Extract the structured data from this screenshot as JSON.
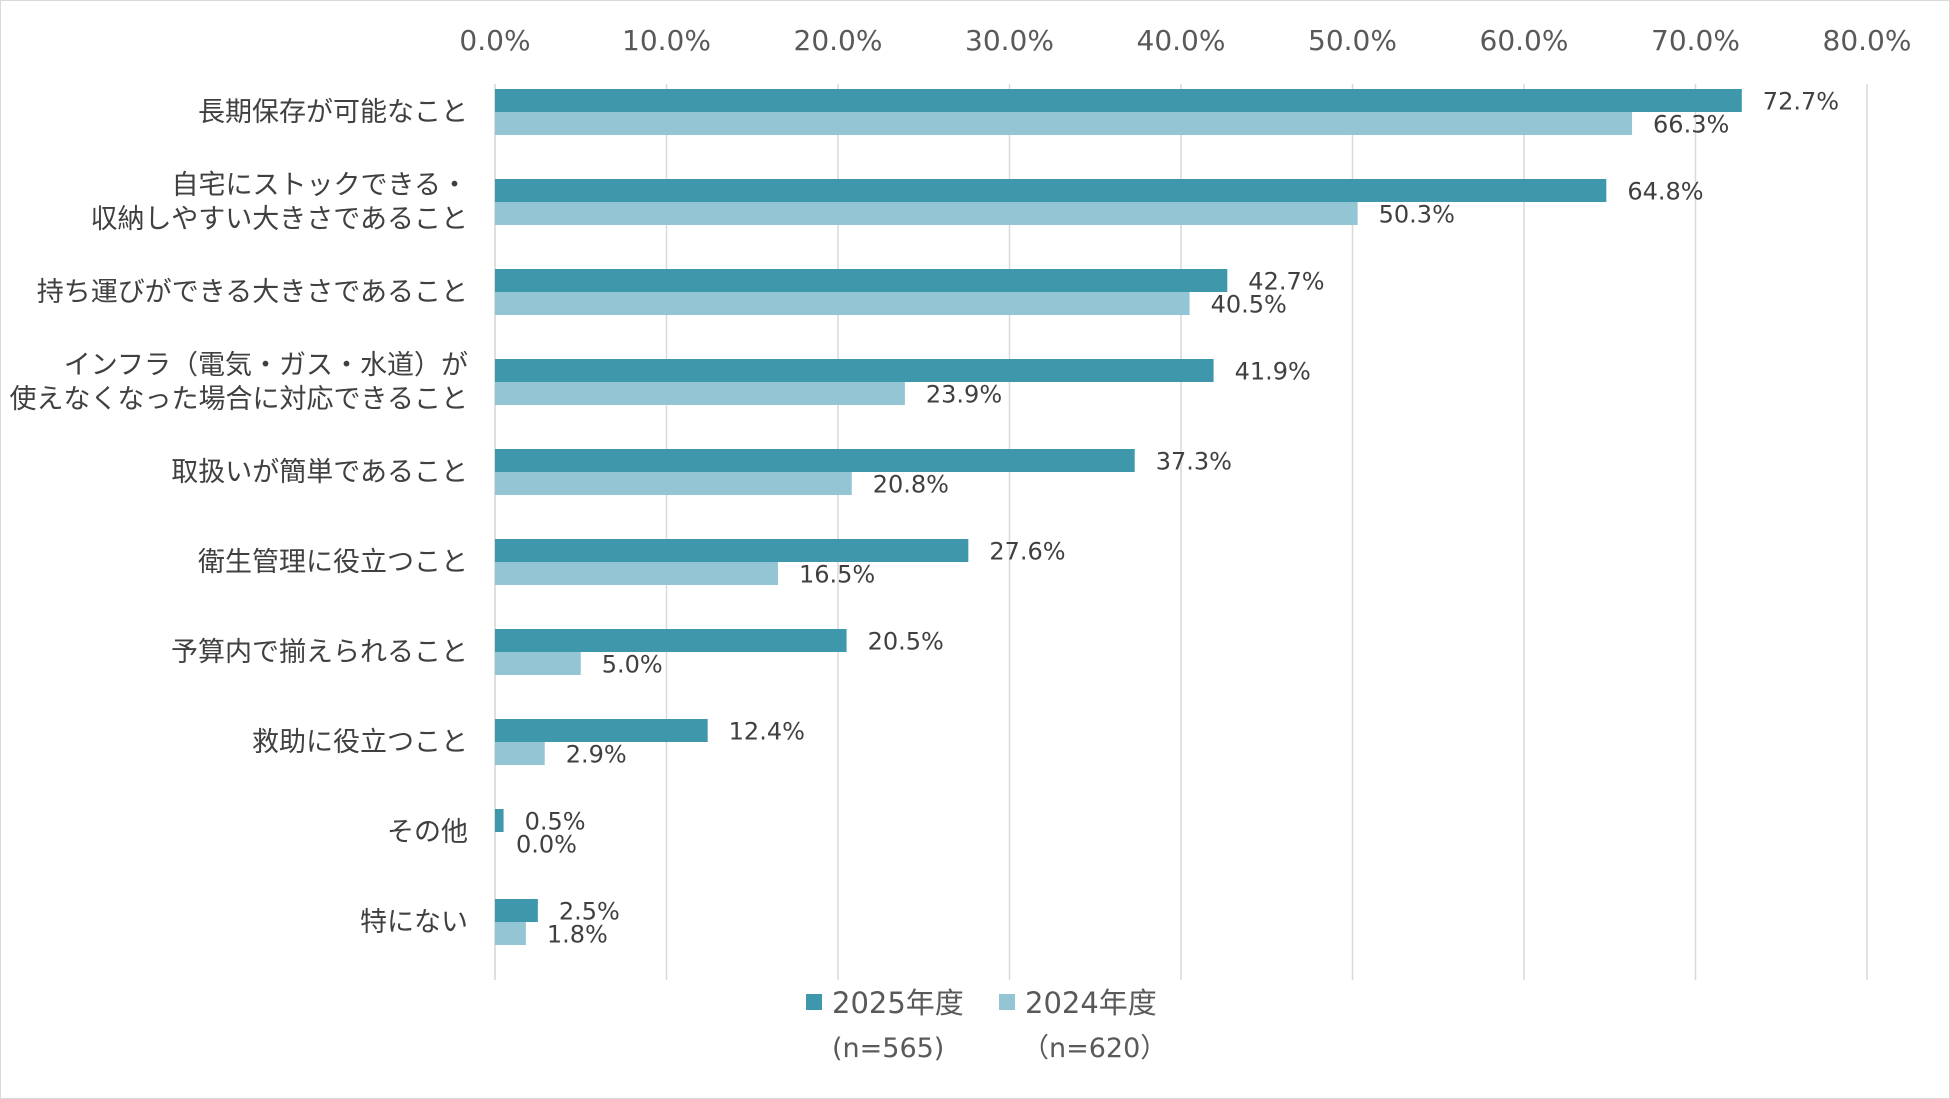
{
  "chart_data": {
    "type": "bar",
    "orientation": "horizontal",
    "xlim": [
      0,
      80
    ],
    "x_ticks": [
      "0.0%",
      "10.0%",
      "20.0%",
      "30.0%",
      "40.0%",
      "50.0%",
      "60.0%",
      "70.0%",
      "80.0%"
    ],
    "grid": true,
    "legend_position": "bottom",
    "categories": [
      [
        "長期保存が可能なこと"
      ],
      [
        "自宅にストックできる・",
        "収納しやすい大きさであること"
      ],
      [
        "持ち運びができる大きさであること"
      ],
      [
        "インフラ（電気・ガス・水道）が",
        "使えなくなった場合に対応できること"
      ],
      [
        "取扱いが簡単であること"
      ],
      [
        "衛生管理に役立つこと"
      ],
      [
        "予算内で揃えられること"
      ],
      [
        "救助に役立つこと"
      ],
      [
        "その他"
      ],
      [
        "特にない"
      ]
    ],
    "series": [
      {
        "name": "2025年度",
        "n_label": "(n=565)",
        "color": "#3f97ab",
        "values": [
          72.7,
          64.8,
          42.7,
          41.9,
          37.3,
          27.6,
          20.5,
          12.4,
          0.5,
          2.5
        ],
        "labels": [
          "72.7%",
          "64.8%",
          "42.7%",
          "41.9%",
          "37.3%",
          "27.6%",
          "20.5%",
          "12.4%",
          "0.5%",
          "2.5%"
        ]
      },
      {
        "name": "2024年度",
        "n_label": "（n=620）",
        "color": "#93c5d5",
        "values": [
          66.3,
          50.3,
          40.5,
          23.9,
          20.8,
          16.5,
          5.0,
          2.9,
          0.0,
          1.8
        ],
        "labels": [
          "66.3%",
          "50.3%",
          "40.5%",
          "23.9%",
          "20.8%",
          "16.5%",
          "5.0%",
          "2.9%",
          "0.0%",
          "1.8%"
        ]
      }
    ]
  }
}
